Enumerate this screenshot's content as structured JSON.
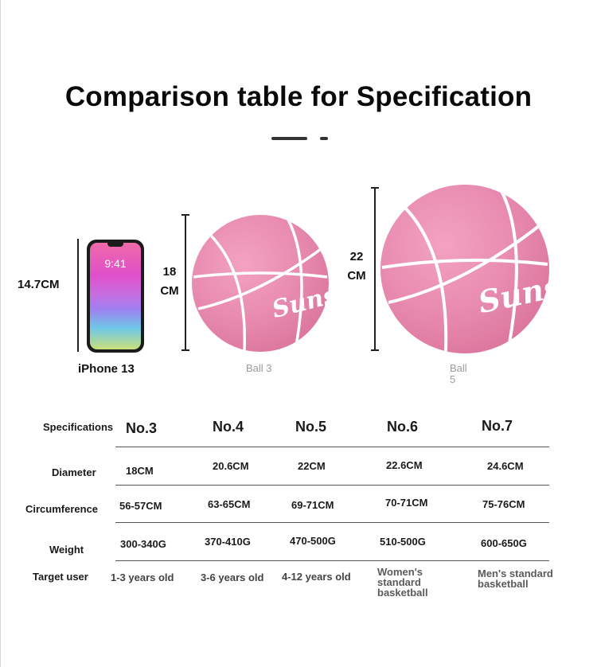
{
  "title": "Comparison table for Specification",
  "figure": {
    "phone_height": "14.7CM",
    "phone_caption": "iPhone 13",
    "phone_time": "9:41",
    "ball3_size_line1": "18",
    "ball3_size_line2": "CM",
    "ball3_caption": "Ball 3",
    "ball5_size_line1": "22",
    "ball5_size_line2": "CM",
    "ball5_caption_line1": "Ball",
    "ball5_caption_line2": "5",
    "brand_text": "Sunsh"
  },
  "table": {
    "row_labels": {
      "specifications": "Specifications",
      "diameter": "Diameter",
      "circumference": "Circumference",
      "weight": "Weight",
      "target_user": "Target user"
    },
    "headers": [
      "No.3",
      "No.4",
      "No.5",
      "No.6",
      "No.7"
    ],
    "diameter": [
      "18CM",
      "20.6CM",
      "22CM",
      "22.6CM",
      "24.6CM"
    ],
    "circumference": [
      "56-57CM",
      "63-65CM",
      "69-71CM",
      "70-71CM",
      "75-76CM"
    ],
    "weight": [
      "300-340G",
      "370-410G",
      "470-500G",
      "510-500G",
      "600-650G"
    ],
    "target_user": [
      "1-3 years old",
      "3-6 years old",
      "4-12 years old",
      "Women's standard basketball",
      "Men's standard basketball"
    ]
  }
}
